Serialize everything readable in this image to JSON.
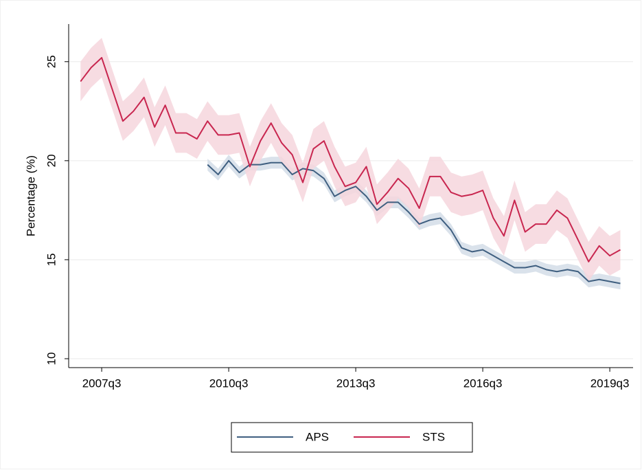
{
  "chart_data": {
    "type": "line",
    "y_label": "Percentage (%)",
    "x": [
      2007,
      2007.25,
      2007.5,
      2007.75,
      2008,
      2008.25,
      2008.5,
      2008.75,
      2009,
      2009.25,
      2009.5,
      2009.75,
      2010,
      2010.25,
      2010.5,
      2010.75,
      2011,
      2011.25,
      2011.5,
      2011.75,
      2012,
      2012.25,
      2012.5,
      2012.75,
      2013,
      2013.25,
      2013.5,
      2013.75,
      2014,
      2014.25,
      2014.5,
      2014.75,
      2015,
      2015.25,
      2015.5,
      2015.75,
      2016,
      2016.25,
      2016.5,
      2016.75,
      2017,
      2017.25,
      2017.5,
      2017.75,
      2018,
      2018.25,
      2018.5,
      2018.75,
      2019,
      2019.25,
      2019.5,
      2019.75
    ],
    "xlim": [
      2006.72,
      2020.05
    ],
    "xticks": [
      {
        "value": 2007.5,
        "label": "2007q3"
      },
      {
        "value": 2010.5,
        "label": "2010q3"
      },
      {
        "value": 2013.5,
        "label": "2013q3"
      },
      {
        "value": 2016.5,
        "label": "2016q3"
      },
      {
        "value": 2019.5,
        "label": "2019q3"
      }
    ],
    "ylim": [
      9.55,
      26.9
    ],
    "yticks": [
      10,
      15,
      20,
      25
    ],
    "grid": true,
    "legend": "bottom",
    "series": [
      {
        "name": "APS",
        "color": "#3f5f80",
        "band_color": "#d3dde8",
        "values": [
          null,
          null,
          null,
          null,
          null,
          null,
          null,
          null,
          null,
          null,
          null,
          null,
          19.8,
          19.3,
          20.0,
          19.4,
          19.8,
          19.8,
          19.9,
          19.9,
          19.3,
          19.6,
          19.5,
          19.1,
          18.2,
          18.5,
          18.7,
          18.2,
          17.5,
          17.9,
          17.9,
          17.4,
          16.8,
          17.0,
          17.1,
          16.5,
          15.6,
          15.4,
          15.5,
          15.2,
          14.9,
          14.6,
          14.6,
          14.7,
          14.5,
          14.4,
          14.5,
          14.4,
          13.9,
          14.0,
          13.9,
          13.8
        ],
        "lower": [
          null,
          null,
          null,
          null,
          null,
          null,
          null,
          null,
          null,
          null,
          null,
          null,
          19.5,
          19.0,
          19.7,
          19.1,
          19.5,
          19.5,
          19.6,
          19.6,
          19.0,
          19.3,
          19.2,
          18.8,
          17.9,
          18.2,
          18.4,
          17.9,
          17.2,
          17.6,
          17.6,
          17.1,
          16.5,
          16.7,
          16.8,
          16.2,
          15.3,
          15.1,
          15.2,
          14.9,
          14.6,
          14.3,
          14.3,
          14.4,
          14.2,
          14.1,
          14.2,
          14.1,
          13.6,
          13.7,
          13.6,
          13.5
        ],
        "upper": [
          null,
          null,
          null,
          null,
          null,
          null,
          null,
          null,
          null,
          null,
          null,
          null,
          20.1,
          19.6,
          20.3,
          19.7,
          20.1,
          20.1,
          20.2,
          20.2,
          19.6,
          19.9,
          19.8,
          19.4,
          18.5,
          18.8,
          19.0,
          18.5,
          17.8,
          18.2,
          18.2,
          17.7,
          17.1,
          17.3,
          17.4,
          16.8,
          15.9,
          15.7,
          15.8,
          15.5,
          15.2,
          14.9,
          14.9,
          15.0,
          14.8,
          14.7,
          14.8,
          14.7,
          14.2,
          14.3,
          14.2,
          14.1
        ]
      },
      {
        "name": "STS",
        "color": "#c8264f",
        "band_color": "#f6d6dd",
        "values": [
          24.0,
          24.7,
          25.2,
          23.6,
          22.0,
          22.5,
          23.2,
          21.7,
          22.8,
          21.4,
          21.4,
          21.1,
          22.0,
          21.3,
          21.3,
          21.4,
          19.7,
          21.0,
          21.9,
          20.9,
          20.3,
          18.9,
          20.6,
          21.0,
          19.7,
          18.7,
          18.9,
          19.7,
          17.8,
          18.4,
          19.1,
          18.6,
          17.6,
          19.2,
          19.2,
          18.4,
          18.2,
          18.3,
          18.5,
          17.1,
          16.2,
          18.0,
          16.4,
          16.8,
          16.8,
          17.5,
          17.1,
          16.0,
          14.9,
          15.7,
          15.2,
          15.5
        ],
        "lower": [
          23.0,
          23.7,
          24.2,
          22.6,
          21.0,
          21.5,
          22.2,
          20.7,
          21.8,
          20.4,
          20.4,
          20.1,
          21.0,
          20.3,
          20.3,
          20.4,
          18.7,
          20.0,
          20.9,
          19.9,
          19.3,
          17.9,
          19.6,
          20.0,
          18.7,
          17.7,
          17.9,
          18.7,
          16.8,
          17.4,
          18.1,
          17.6,
          16.6,
          18.2,
          18.2,
          17.4,
          17.2,
          17.3,
          17.5,
          16.1,
          15.2,
          17.0,
          15.4,
          15.8,
          15.8,
          16.5,
          16.1,
          15.0,
          13.9,
          14.7,
          14.2,
          14.5
        ],
        "upper": [
          25.0,
          25.7,
          26.2,
          24.6,
          23.0,
          23.5,
          24.2,
          22.7,
          23.8,
          22.4,
          22.4,
          22.1,
          23.0,
          22.3,
          22.3,
          22.4,
          20.7,
          22.0,
          22.9,
          21.9,
          21.3,
          19.9,
          21.6,
          22.0,
          20.7,
          19.7,
          19.9,
          20.7,
          18.8,
          19.4,
          20.1,
          19.6,
          18.6,
          20.2,
          20.2,
          19.4,
          19.2,
          19.3,
          19.5,
          18.1,
          17.2,
          19.0,
          17.4,
          17.8,
          17.8,
          18.5,
          18.1,
          17.0,
          15.9,
          16.7,
          16.2,
          16.5
        ]
      }
    ]
  }
}
